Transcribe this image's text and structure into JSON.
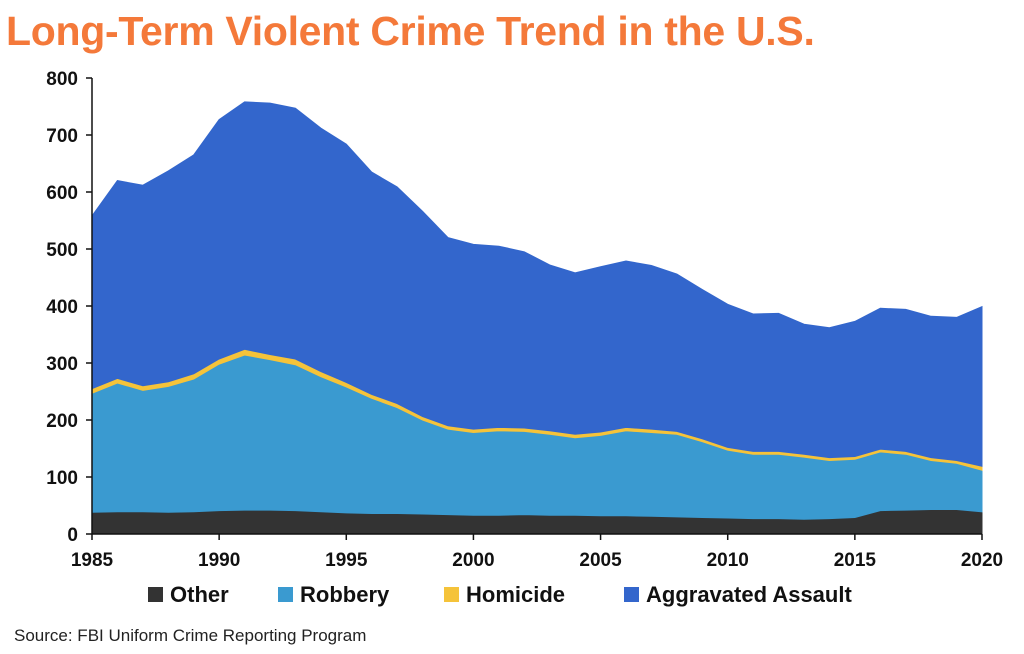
{
  "chart_data": {
    "type": "area",
    "stacked": true,
    "title": "Long-Term Violent Crime Trend in the U.S.",
    "xlabel": "",
    "ylabel": "",
    "xlim": [
      1985,
      2020
    ],
    "ylim": [
      0,
      800
    ],
    "xticks": [
      "1985",
      "1990",
      "1995",
      "2000",
      "2005",
      "2010",
      "2015",
      "2020"
    ],
    "yticks": [
      "0",
      "100",
      "200",
      "300",
      "400",
      "500",
      "600",
      "700",
      "800"
    ],
    "grid": false,
    "legend_position": "bottom",
    "x": [
      1985,
      1986,
      1987,
      1988,
      1989,
      1990,
      1991,
      1992,
      1993,
      1994,
      1995,
      1996,
      1997,
      1998,
      1999,
      2000,
      2001,
      2002,
      2003,
      2004,
      2005,
      2006,
      2007,
      2008,
      2009,
      2010,
      2011,
      2012,
      2013,
      2014,
      2015,
      2016,
      2017,
      2018,
      2019,
      2020
    ],
    "series": [
      {
        "name": "Other",
        "color": "#333333",
        "values": [
          38,
          39,
          39,
          38,
          39,
          41,
          42,
          42,
          41,
          39,
          37,
          36,
          36,
          35,
          34,
          33,
          33,
          34,
          33,
          33,
          32,
          32,
          31,
          30,
          29,
          28,
          27,
          27,
          26,
          27,
          29,
          41,
          42,
          43,
          43,
          39
        ]
      },
      {
        "name": "Robbery",
        "color": "#3a9ad0",
        "values": [
          209,
          226,
          213,
          221,
          233,
          257,
          272,
          264,
          256,
          237,
          221,
          202,
          186,
          165,
          150,
          145,
          148,
          146,
          142,
          136,
          141,
          149,
          147,
          145,
          133,
          119,
          113,
          113,
          109,
          102,
          102,
          103,
          98,
          86,
          81,
          73
        ]
      },
      {
        "name": "Homicide",
        "color": "#f5c33a",
        "values": [
          8,
          8,
          8,
          8,
          9,
          9,
          10,
          9,
          10,
          9,
          8,
          7,
          7,
          6,
          6,
          6,
          6,
          6,
          6,
          6,
          6,
          6,
          6,
          5,
          5,
          5,
          5,
          5,
          5,
          5,
          5,
          5,
          5,
          5,
          5,
          7
        ]
      },
      {
        "name": "Aggravated Assault",
        "color": "#3366cc",
        "values": [
          303,
          347,
          352,
          370,
          384,
          420,
          434,
          441,
          440,
          427,
          418,
          390,
          380,
          360,
          330,
          324,
          318,
          309,
          291,
          283,
          290,
          292,
          287,
          276,
          262,
          251,
          241,
          242,
          228,
          228,
          237,
          247,
          249,
          248,
          251,
          280
        ]
      }
    ]
  },
  "source_text": "Source: FBI Uniform Crime Reporting Program"
}
